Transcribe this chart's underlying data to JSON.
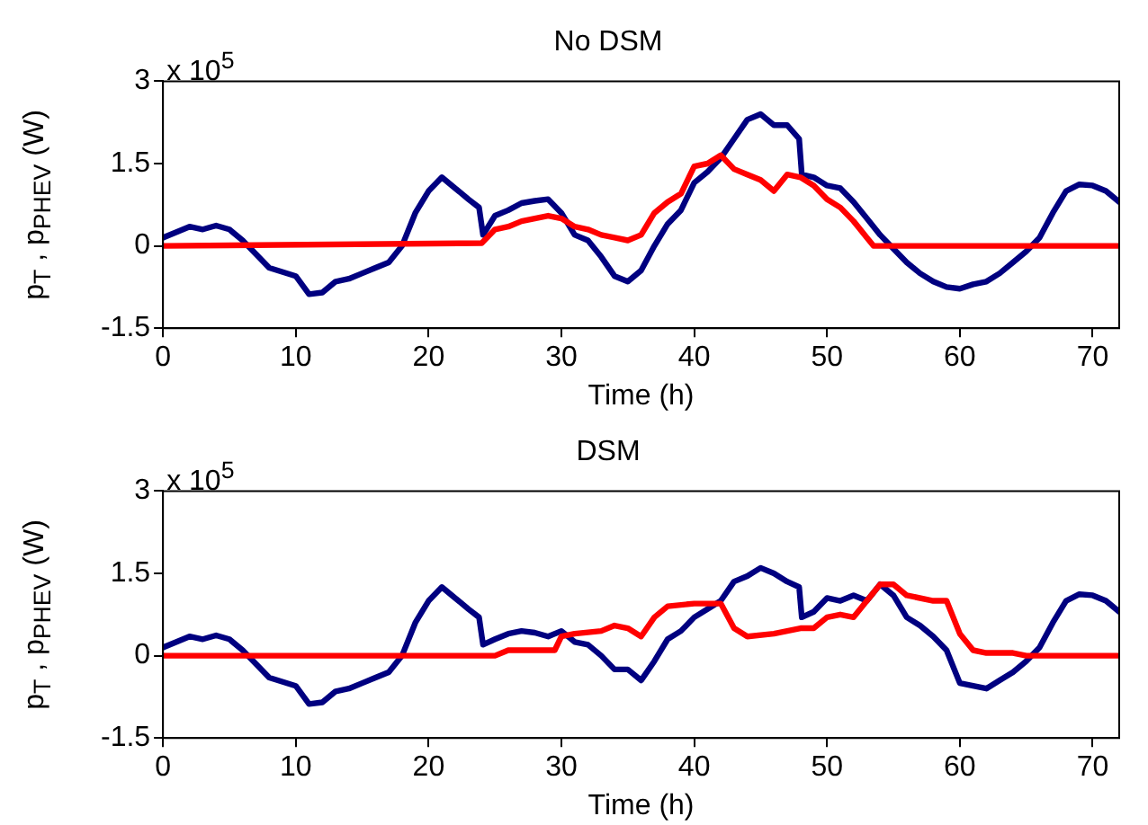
{
  "chart_data": [
    {
      "type": "line",
      "title": "No DSM",
      "xlabel": "Time (h)",
      "ylabel": "p$_{T}$ , p$_{PHEV}$ (W)",
      "annotations": [
        "x 10$^{5}$"
      ],
      "xlim": [
        0,
        72
      ],
      "xticks": [
        0,
        10,
        20,
        30,
        40,
        50,
        60,
        70
      ],
      "ylim": [
        -1.5,
        3
      ],
      "yticks": [
        -1.5,
        0,
        1.5,
        3
      ],
      "grid": false,
      "legend": false,
      "marker": "none",
      "line_style": "solid",
      "series": [
        {
          "color": "#ff0000",
          "x": [
            0,
            24,
            25,
            26,
            27,
            28,
            29,
            30,
            31,
            32,
            33,
            34,
            35,
            36,
            37,
            38,
            39,
            40,
            41,
            42,
            43,
            44,
            45,
            46,
            47,
            48,
            49,
            50,
            51,
            52,
            53,
            53.5,
            72
          ],
          "values": [
            0,
            0.05,
            0.3,
            0.35,
            0.45,
            0.5,
            0.55,
            0.5,
            0.35,
            0.3,
            0.2,
            0.15,
            0.1,
            0.2,
            0.6,
            0.8,
            0.95,
            1.45,
            1.5,
            1.65,
            1.4,
            1.3,
            1.2,
            1.0,
            1.3,
            1.25,
            1.1,
            0.85,
            0.7,
            0.45,
            0.15,
            0,
            0
          ]
        },
        {
          "color": "#000080",
          "x": [
            0,
            2,
            3,
            4,
            5,
            6,
            7,
            8,
            10,
            11,
            12,
            13,
            14,
            15,
            16,
            17,
            18,
            19,
            20,
            21,
            22,
            23,
            23.8,
            24.1,
            25,
            26,
            27,
            28,
            29,
            30,
            31,
            32,
            33,
            34,
            35,
            36,
            37,
            38,
            39,
            40,
            41,
            42,
            43,
            44,
            45,
            46,
            47,
            47.9,
            48.1,
            49,
            50,
            51,
            52,
            53,
            54,
            55,
            56,
            57,
            58,
            59,
            60,
            61,
            62,
            63,
            64,
            65,
            66,
            67,
            68,
            69,
            70,
            71,
            72
          ],
          "values": [
            0.15,
            0.35,
            0.3,
            0.37,
            0.3,
            0.1,
            -0.15,
            -0.4,
            -0.55,
            -0.88,
            -0.85,
            -0.65,
            -0.6,
            -0.5,
            -0.4,
            -0.3,
            0.0,
            0.6,
            1.0,
            1.25,
            1.05,
            0.85,
            0.7,
            0.2,
            0.55,
            0.65,
            0.78,
            0.82,
            0.85,
            0.6,
            0.2,
            0.1,
            -0.2,
            -0.55,
            -0.65,
            -0.45,
            0.0,
            0.4,
            0.65,
            1.15,
            1.35,
            1.6,
            1.95,
            2.3,
            2.4,
            2.2,
            2.2,
            1.95,
            1.3,
            1.25,
            1.1,
            1.05,
            0.8,
            0.5,
            0.2,
            -0.05,
            -0.3,
            -0.5,
            -0.65,
            -0.75,
            -0.78,
            -0.7,
            -0.65,
            -0.5,
            -0.3,
            -0.1,
            0.15,
            0.6,
            1.0,
            1.12,
            1.1,
            1.0,
            0.8
          ]
        }
      ]
    },
    {
      "type": "line",
      "title": "DSM",
      "xlabel": "Time (h)",
      "ylabel": "p$_{T}$ , p$_{PHEV}$ (W)",
      "annotations": [
        "x 10$^{5}$"
      ],
      "xlim": [
        0,
        72
      ],
      "xticks": [
        0,
        10,
        20,
        30,
        40,
        50,
        60,
        70
      ],
      "ylim": [
        -1.5,
        3
      ],
      "yticks": [
        -1.5,
        0,
        1.5,
        3
      ],
      "grid": false,
      "legend": false,
      "marker": "none",
      "line_style": "solid",
      "series": [
        {
          "color": "#ff0000",
          "x": [
            0,
            25,
            26,
            29.5,
            30,
            31,
            33,
            34,
            35,
            36,
            37,
            38,
            40,
            42,
            43,
            44,
            46,
            48,
            49,
            50,
            51,
            52,
            53,
            54,
            55,
            56,
            58,
            59,
            60,
            61,
            62,
            64,
            65,
            72
          ],
          "values": [
            0,
            0,
            0.1,
            0.1,
            0.35,
            0.4,
            0.45,
            0.55,
            0.5,
            0.35,
            0.7,
            0.9,
            0.95,
            0.95,
            0.5,
            0.35,
            0.4,
            0.5,
            0.5,
            0.7,
            0.75,
            0.7,
            1.0,
            1.3,
            1.3,
            1.1,
            1.0,
            1.0,
            0.4,
            0.1,
            0.05,
            0.05,
            0,
            0
          ]
        },
        {
          "color": "#000080",
          "x": [
            0,
            2,
            3,
            4,
            5,
            6,
            7,
            8,
            10,
            11,
            12,
            13,
            14,
            15,
            16,
            17,
            18,
            19,
            20,
            21,
            22,
            23,
            23.8,
            24.1,
            25,
            26,
            27,
            28,
            29,
            30,
            31,
            32,
            33,
            34,
            35,
            36,
            37,
            38,
            39,
            40,
            41,
            42,
            43,
            44,
            45,
            46,
            47,
            47.9,
            48.1,
            49,
            50,
            51,
            52,
            53,
            54,
            55,
            56,
            57,
            58,
            59,
            60,
            61,
            62,
            63,
            64,
            65,
            66,
            67,
            68,
            69,
            70,
            71,
            72
          ],
          "values": [
            0.15,
            0.35,
            0.3,
            0.37,
            0.3,
            0.1,
            -0.15,
            -0.4,
            -0.55,
            -0.88,
            -0.85,
            -0.65,
            -0.6,
            -0.5,
            -0.4,
            -0.3,
            0.0,
            0.6,
            1.0,
            1.25,
            1.05,
            0.85,
            0.7,
            0.2,
            0.3,
            0.4,
            0.45,
            0.42,
            0.35,
            0.45,
            0.25,
            0.2,
            0.0,
            -0.25,
            -0.25,
            -0.45,
            -0.1,
            0.3,
            0.45,
            0.7,
            0.85,
            1.0,
            1.35,
            1.45,
            1.6,
            1.5,
            1.35,
            1.25,
            0.7,
            0.8,
            1.05,
            1.0,
            1.1,
            1.0,
            1.3,
            1.1,
            0.7,
            0.55,
            0.35,
            0.1,
            -0.5,
            -0.55,
            -0.6,
            -0.45,
            -0.3,
            -0.1,
            0.15,
            0.6,
            1.0,
            1.12,
            1.1,
            1.0,
            0.8
          ]
        }
      ]
    }
  ]
}
